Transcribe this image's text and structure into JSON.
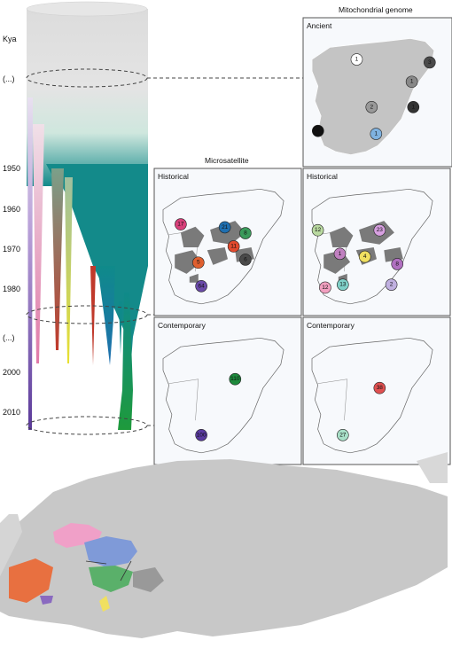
{
  "axis": {
    "unit": "Kya",
    "ticks": [
      "(...)",
      "1950",
      "1960",
      "1970",
      "1980",
      "(...)",
      "2000",
      "2010"
    ]
  },
  "headers": {
    "mito": "Mitochondrial genome",
    "micro": "Microsatellite"
  },
  "panels": {
    "ancient": "Ancient",
    "historical_left": "Historical",
    "historical_right": "Historical",
    "contemporary_left": "Contemporary",
    "contemporary_right": "Contemporary"
  },
  "pies": {
    "ancient": [
      {
        "n": "1",
        "color": "#ffffff",
        "x": 0.0,
        "y": 0.0
      },
      {
        "n": "3",
        "color": "#4a4a4a"
      },
      {
        "n": "1",
        "color": "#888888"
      },
      {
        "n": "2",
        "color": "#999999"
      },
      {
        "n": "1",
        "color": "#333333"
      },
      {
        "n": "1",
        "color": "#111111"
      },
      {
        "n": "1",
        "color": "#7fb2e0"
      }
    ],
    "historical_left": [
      {
        "n": "17",
        "color": "#d8407a"
      },
      {
        "n": "21",
        "color": "#1f6fb0"
      },
      {
        "n": "11",
        "color": "#e24a2e"
      },
      {
        "n": "8",
        "color": "#3a9a5a"
      },
      {
        "n": "6",
        "color": "#4a4a4a"
      },
      {
        "n": "5",
        "color": "#e06030"
      },
      {
        "n": "64",
        "color": "#6a4aa8"
      }
    ],
    "historical_right": [
      {
        "n": "12",
        "color": "#b9d9a0"
      },
      {
        "n": "23",
        "color": "#d7a0e0"
      },
      {
        "n": "4",
        "color": "#f0e060"
      },
      {
        "n": "1",
        "color": "#c080c0"
      },
      {
        "n": "8",
        "color": "#b070c0"
      },
      {
        "n": "12",
        "color": "#f2a0c0"
      },
      {
        "n": "13",
        "color": "#7fd0c8"
      },
      {
        "n": "2",
        "color": "#c0b0e0"
      }
    ],
    "contemporary_left": [
      {
        "n": "110",
        "color": "#1e8a3c"
      },
      {
        "n": "100",
        "color": "#5a3aa0"
      }
    ],
    "contemporary_right": [
      {
        "n": "38",
        "color": "#e05050"
      },
      {
        "n": "27",
        "color": "#a8e0c8"
      }
    ]
  },
  "lineage_colors": {
    "purple": "#5b3a9a",
    "pink": "#e07aa8",
    "red": "#c0392b",
    "yellow": "#e8e030",
    "teal": "#0f8a8a",
    "blue": "#1f6fb0",
    "green": "#1e9a3c"
  }
}
